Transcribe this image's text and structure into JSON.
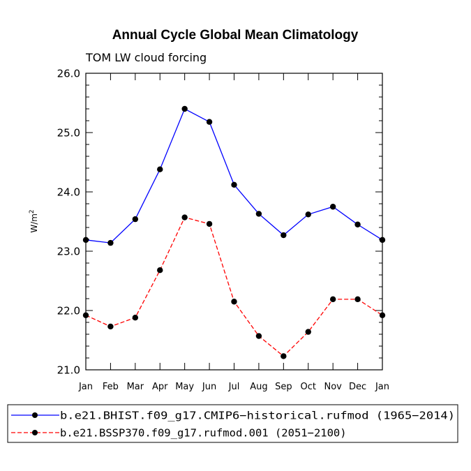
{
  "chart_data": {
    "type": "line",
    "title": "Annual Cycle Global Mean Climatology",
    "subtitle": "TOM LW cloud forcing",
    "xlabel": "",
    "ylabel": "W/m",
    "ylabel_superscript": "2",
    "categories": [
      "Jan",
      "Feb",
      "Mar",
      "Apr",
      "May",
      "Jun",
      "Jul",
      "Aug",
      "Sep",
      "Oct",
      "Nov",
      "Dec",
      "Jan"
    ],
    "ylim": [
      21.0,
      26.0
    ],
    "yticks": [
      "21.0",
      "22.0",
      "23.0",
      "24.0",
      "25.0",
      "26.0"
    ],
    "grid": false,
    "series": [
      {
        "name": "b.e21.BHIST.f09_g17.CMIP6−historical.rufmod (1965−2014)",
        "color": "#0000ff",
        "dash": "solid",
        "values": [
          23.19,
          23.14,
          23.54,
          24.38,
          25.4,
          25.18,
          24.12,
          23.63,
          23.27,
          23.62,
          23.75,
          23.45,
          23.19
        ]
      },
      {
        "name": "b.e21.BSSP370.f09_g17.rufmod.001 (2051−2100)",
        "color": "#ff0000",
        "dash": "dashed",
        "values": [
          21.92,
          21.73,
          21.88,
          22.68,
          23.57,
          23.46,
          22.15,
          21.57,
          21.23,
          21.64,
          22.19,
          22.19,
          21.92
        ]
      }
    ],
    "legend_position": "bottom"
  }
}
